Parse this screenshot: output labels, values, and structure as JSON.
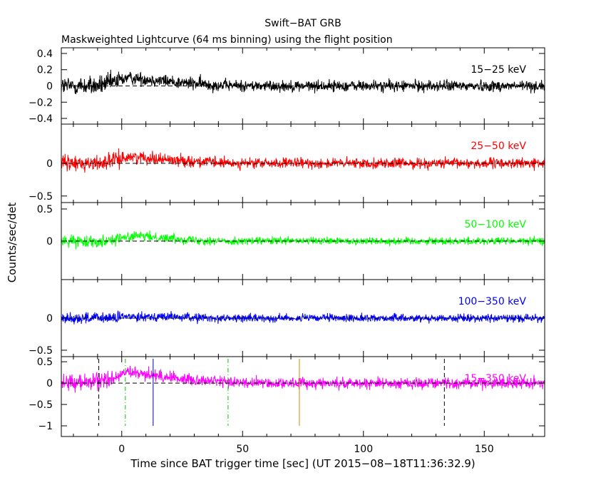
{
  "chart_data": {
    "type": "line",
    "title": "Swift−BAT GRB",
    "subtitle": "Maskweighted Lightcurve (64 ms binning) using the flight position",
    "xlabel": "Time since BAT trigger time [sec] (UT 2015−08−18T11:36:32.9)",
    "ylabel": "Counts/sec/det",
    "xlim": [
      -25,
      175
    ],
    "x_ticks": [
      0,
      50,
      100,
      150
    ],
    "x_tick_labels": [
      "0",
      "50",
      "100",
      "150"
    ],
    "grid": false,
    "panels": [
      {
        "name": "15−25 keV",
        "color": "#000000",
        "ylim": [
          -0.47,
          0.47
        ],
        "y_ticks": [
          0.4,
          0.2,
          0,
          -0.2,
          -0.4
        ],
        "y_tick_labels": [
          "0.4",
          "0.2",
          "0",
          "−0.2",
          "−0.4"
        ],
        "noise_sigma": [
          0.06,
          0.04,
          0.035
        ],
        "profile": [
          [
            -25,
            0.0
          ],
          [
            -10,
            0.0
          ],
          [
            -3,
            0.05
          ],
          [
            2,
            0.1
          ],
          [
            8,
            0.09
          ],
          [
            15,
            0.07
          ],
          [
            25,
            0.04
          ],
          [
            40,
            0.01
          ],
          [
            55,
            0.0
          ],
          [
            175,
            0.0
          ]
        ]
      },
      {
        "name": "25−50 keV",
        "color": "#ff0000",
        "ylim": [
          -0.6,
          0.6
        ],
        "y_ticks": [
          0,
          -0.5
        ],
        "y_tick_labels": [
          "0",
          "−0.5"
        ],
        "noise_sigma": [
          0.06,
          0.045,
          0.04
        ],
        "profile": [
          [
            -25,
            0.0
          ],
          [
            -10,
            0.0
          ],
          [
            -3,
            0.05
          ],
          [
            3,
            0.1
          ],
          [
            10,
            0.09
          ],
          [
            18,
            0.06
          ],
          [
            30,
            0.03
          ],
          [
            45,
            0.0
          ],
          [
            175,
            0.0
          ]
        ]
      },
      {
        "name": "50−100 keV",
        "color": "#00ff00",
        "ylim": [
          -0.6,
          0.6
        ],
        "y_ticks": [
          0.5,
          0
        ],
        "y_tick_labels": [
          "0.5",
          "0"
        ],
        "noise_sigma": [
          0.045,
          0.035,
          0.03
        ],
        "profile": [
          [
            -25,
            0.0
          ],
          [
            -8,
            0.0
          ],
          [
            0,
            0.05
          ],
          [
            6,
            0.08
          ],
          [
            14,
            0.06
          ],
          [
            25,
            0.03
          ],
          [
            40,
            0.0
          ],
          [
            175,
            0.0
          ]
        ]
      },
      {
        "name": "100−350 keV",
        "color": "#0000ff",
        "ylim": [
          -0.6,
          0.6
        ],
        "y_ticks": [
          0,
          -0.5
        ],
        "y_tick_labels": [
          "0",
          "−0.5"
        ],
        "noise_sigma": [
          0.045,
          0.035,
          0.03
        ],
        "profile": [
          [
            -25,
            0.0
          ],
          [
            -5,
            0.0
          ],
          [
            5,
            0.03
          ],
          [
            20,
            0.02
          ],
          [
            35,
            0.0
          ],
          [
            175,
            0.0
          ]
        ]
      },
      {
        "name": "15−350 keV",
        "color": "#ff00ff",
        "ylim": [
          -1.25,
          0.62
        ],
        "y_ticks": [
          0.5,
          0,
          -0.5,
          -1
        ],
        "y_tick_labels": [
          "0.5",
          "0",
          "−0.5",
          "−1"
        ],
        "noise_sigma": [
          0.1,
          0.07,
          0.065
        ],
        "profile": [
          [
            -25,
            0.0
          ],
          [
            -12,
            0.02
          ],
          [
            -3,
            0.12
          ],
          [
            2,
            0.25
          ],
          [
            8,
            0.22
          ],
          [
            14,
            0.18
          ],
          [
            25,
            0.1
          ],
          [
            40,
            0.04
          ],
          [
            55,
            0.0
          ],
          [
            175,
            0.0
          ]
        ],
        "markers": [
          {
            "x": -9.5,
            "color": "#000000",
            "style": "dashed"
          },
          {
            "x": 1.5,
            "color": "#00cc00",
            "style": "dashdot"
          },
          {
            "x": 13,
            "color": "#0000aa",
            "style": "solid"
          },
          {
            "x": 44,
            "color": "#00cc00",
            "style": "dashdot"
          },
          {
            "x": 73.5,
            "color": "#cc8800",
            "style": "solid"
          },
          {
            "x": 133.5,
            "color": "#000000",
            "style": "dashed"
          }
        ]
      }
    ]
  }
}
